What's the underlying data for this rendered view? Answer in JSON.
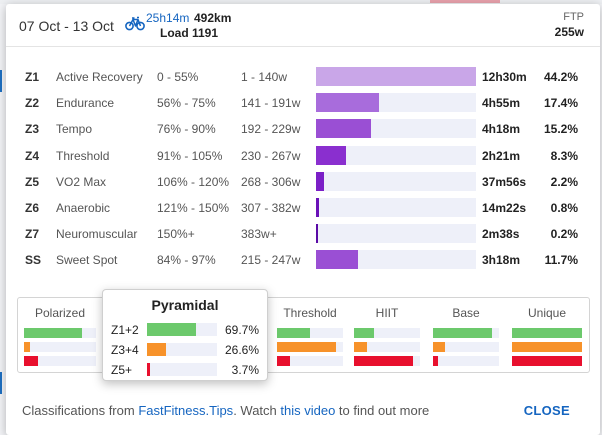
{
  "header": {
    "dates": "07 Oct - 13 Oct",
    "activity_icon": "bicycle-icon",
    "duration": "25h14m",
    "distance": "492km",
    "load": "Load 1191",
    "ftp_label": "FTP",
    "ftp_value": "255w"
  },
  "zones": [
    {
      "code": "Z1",
      "name": "Active Recovery",
      "pct_range": "0 - 55%",
      "watts": "1 - 140w",
      "time": "12h30m",
      "share": "44.2%",
      "share_value": 44.2,
      "color": "#c9a6e8"
    },
    {
      "code": "Z2",
      "name": "Endurance",
      "pct_range": "56% - 75%",
      "watts": "141 - 191w",
      "time": "4h55m",
      "share": "17.4%",
      "share_value": 17.4,
      "color": "#a86cdc"
    },
    {
      "code": "Z3",
      "name": "Tempo",
      "pct_range": "76% - 90%",
      "watts": "192 - 229w",
      "time": "4h18m",
      "share": "15.2%",
      "share_value": 15.2,
      "color": "#9a4fd4"
    },
    {
      "code": "Z4",
      "name": "Threshold",
      "pct_range": "91% - 105%",
      "watts": "230 - 267w",
      "time": "2h21m",
      "share": "8.3%",
      "share_value": 8.3,
      "color": "#8a2fcf"
    },
    {
      "code": "Z5",
      "name": "VO2 Max",
      "pct_range": "106% - 120%",
      "watts": "268 - 306w",
      "time": "37m56s",
      "share": "2.2%",
      "share_value": 2.2,
      "color": "#7b1fc7"
    },
    {
      "code": "Z6",
      "name": "Anaerobic",
      "pct_range": "121% - 150%",
      "watts": "307 - 382w",
      "time": "14m22s",
      "share": "0.8%",
      "share_value": 0.8,
      "color": "#6a11b8"
    },
    {
      "code": "Z7",
      "name": "Neuromuscular",
      "pct_range": "150%+",
      "watts": "383w+",
      "time": "2m38s",
      "share": "0.2%",
      "share_value": 0.2,
      "color": "#5a0aa6"
    },
    {
      "code": "SS",
      "name": "Sweet Spot",
      "pct_range": "84% - 97%",
      "watts": "215 - 247w",
      "time": "3h18m",
      "share": "11.7%",
      "share_value": 11.7,
      "color": "#9a4fd4"
    }
  ],
  "classifications": [
    {
      "label": "Polarized",
      "levels": [
        0.8,
        0.08,
        0.2
      ]
    },
    {
      "label": "Pyramidal",
      "levels": [
        0.7,
        0.27,
        0.04
      ]
    },
    {
      "label": "Threshold",
      "levels": [
        0.5,
        0.9,
        0.2
      ]
    },
    {
      "label": "HIIT",
      "levels": [
        0.3,
        0.2,
        0.9
      ]
    },
    {
      "label": "Base",
      "levels": [
        0.9,
        0.18,
        0.08
      ]
    },
    {
      "label": "Unique",
      "levels": [
        1.0,
        1.0,
        1.0
      ]
    }
  ],
  "popup": {
    "title": "Pyramidal",
    "rows": [
      {
        "label": "Z1+2",
        "value": "69.7%",
        "level": 0.697,
        "color": "#6cc96c"
      },
      {
        "label": "Z3+4",
        "value": "26.6%",
        "level": 0.266,
        "color": "#f7922a"
      },
      {
        "label": "Z5+",
        "value": "3.7%",
        "level": 0.037,
        "color": "#e8102e"
      }
    ]
  },
  "class_colors": [
    "#6cc96c",
    "#f7922a",
    "#e8102e"
  ],
  "footer": {
    "text1": "Classifications from ",
    "link1": "FastFitness.Tips",
    "text2": ". Watch ",
    "link2": "this video",
    "text3": " to find out more",
    "close_label": "CLOSE"
  }
}
